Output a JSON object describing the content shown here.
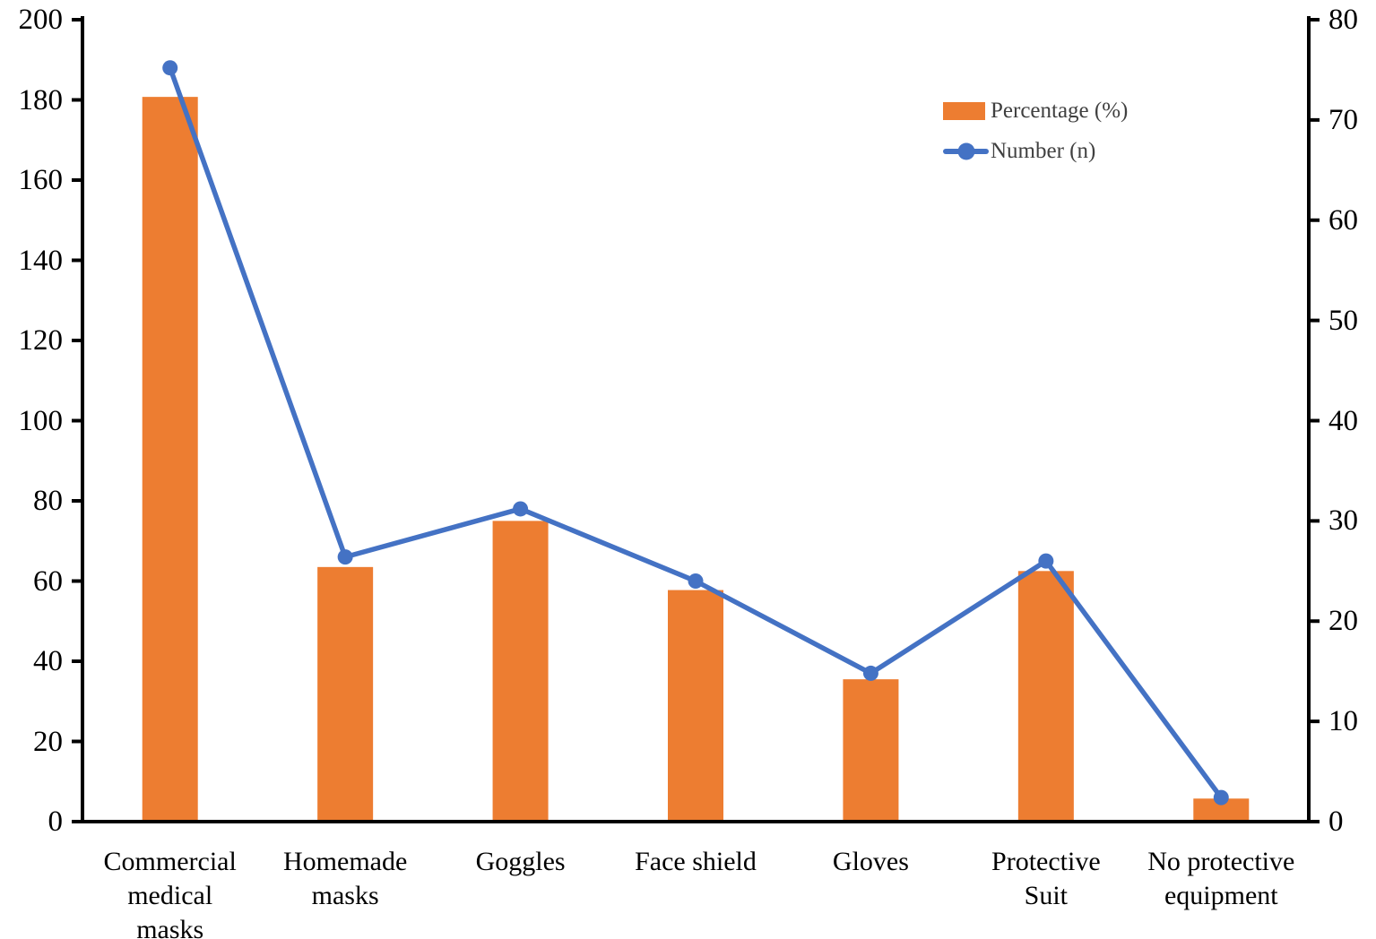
{
  "chart_data": {
    "type": "bar",
    "subtype": "bar-line-combo",
    "title": "",
    "xlabel": "",
    "ylabel_left": "",
    "ylabel_right": "",
    "grid": false,
    "legend_position": "upper-right-inside",
    "categories": [
      "Commercial\nmedical\nmasks",
      "Homemade\nmasks",
      "Goggles",
      "Face shield",
      "Gloves",
      "Protective\nSuit",
      "No protective\nequipment"
    ],
    "series": [
      {
        "name": "Percentage (%)",
        "type": "bar",
        "axis": "right",
        "color": "#ED7D31",
        "values": [
          72.3,
          25.4,
          30.0,
          23.1,
          14.2,
          25.0,
          2.3
        ]
      },
      {
        "name": "Number (n)",
        "type": "line",
        "axis": "left",
        "color": "#4472C4",
        "values": [
          188,
          66,
          78,
          60,
          37,
          65,
          6
        ]
      }
    ],
    "left_axis": {
      "min": 0,
      "max": 200,
      "step": 20,
      "tick_labels": [
        "0",
        "20",
        "40",
        "60",
        "80",
        "100",
        "120",
        "140",
        "160",
        "180",
        "200"
      ]
    },
    "right_axis": {
      "min": 0,
      "max": 80,
      "step": 10,
      "tick_labels": [
        "0",
        "10",
        "20",
        "30",
        "40",
        "50",
        "60",
        "70",
        "80"
      ]
    },
    "axis_color": "#000000"
  },
  "legend": {
    "items": [
      {
        "label": "Percentage (%)",
        "swatch": "bar-swatch"
      },
      {
        "label": "Number (n)",
        "swatch": "line-marker-swatch"
      }
    ]
  }
}
